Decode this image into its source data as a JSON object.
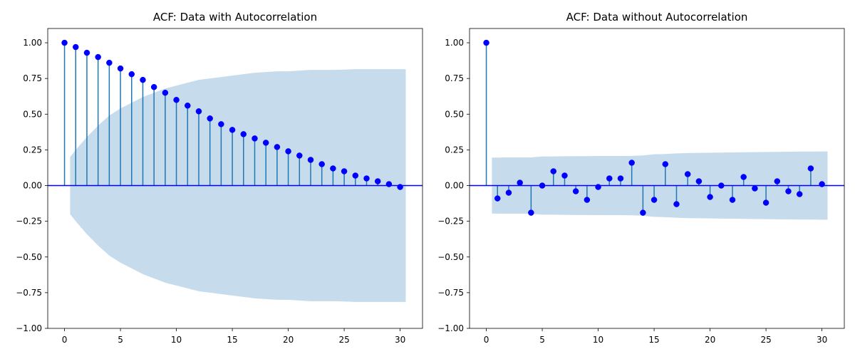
{
  "colors": {
    "stem": "#1f77b4",
    "marker": "#0000ff",
    "zero_line": "#0000ff",
    "confidence_band": "#c6dbec",
    "axes": "#000000"
  },
  "chart_data": [
    {
      "type": "scatter",
      "subtype": "stem",
      "title": "ACF: Data with Autocorrelation",
      "xlabel": "",
      "ylabel": "",
      "xlim": [
        -1.5,
        32
      ],
      "ylim": [
        -1.0,
        1.1
      ],
      "xticks": [
        0,
        5,
        10,
        15,
        20,
        25,
        30
      ],
      "xtick_labels": [
        "0",
        "5",
        "10",
        "15",
        "20",
        "25",
        "30"
      ],
      "yticks": [
        1.0,
        0.75,
        0.5,
        0.25,
        0.0,
        -0.25,
        -0.5,
        -0.75,
        -1.0
      ],
      "ytick_labels": [
        "1.00",
        "0.75",
        "0.50",
        "0.25",
        "0.00",
        "−0.25",
        "−0.50",
        "−0.75",
        "−1.00"
      ],
      "grid": false,
      "x": [
        0,
        1,
        2,
        3,
        4,
        5,
        6,
        7,
        8,
        9,
        10,
        11,
        12,
        13,
        14,
        15,
        16,
        17,
        18,
        19,
        20,
        21,
        22,
        23,
        24,
        25,
        26,
        27,
        28,
        29,
        30
      ],
      "values": [
        1.0,
        0.97,
        0.93,
        0.9,
        0.86,
        0.82,
        0.78,
        0.74,
        0.69,
        0.65,
        0.6,
        0.56,
        0.52,
        0.47,
        0.43,
        0.39,
        0.36,
        0.33,
        0.3,
        0.27,
        0.24,
        0.21,
        0.18,
        0.15,
        0.12,
        0.1,
        0.07,
        0.05,
        0.03,
        0.01,
        -0.01
      ],
      "confidence_band": {
        "x": [
          0.5,
          1,
          2,
          3,
          4,
          5,
          6,
          7,
          8,
          9,
          10,
          11,
          12,
          13,
          14,
          15,
          16,
          17,
          18,
          19,
          20,
          21,
          22,
          23,
          24,
          25,
          26,
          27,
          28,
          29,
          30,
          30.5
        ],
        "upper": [
          0.2,
          0.25,
          0.34,
          0.42,
          0.49,
          0.54,
          0.58,
          0.62,
          0.65,
          0.68,
          0.7,
          0.72,
          0.74,
          0.75,
          0.76,
          0.77,
          0.78,
          0.79,
          0.795,
          0.8,
          0.8,
          0.805,
          0.81,
          0.81,
          0.81,
          0.812,
          0.815,
          0.815,
          0.815,
          0.815,
          0.815,
          0.815
        ]
      }
    },
    {
      "type": "scatter",
      "subtype": "stem",
      "title": "ACF: Data without Autocorrelation",
      "xlabel": "",
      "ylabel": "",
      "xlim": [
        -1.5,
        32
      ],
      "ylim": [
        -1.0,
        1.1
      ],
      "xticks": [
        0,
        5,
        10,
        15,
        20,
        25,
        30
      ],
      "xtick_labels": [
        "0",
        "5",
        "10",
        "15",
        "20",
        "25",
        "30"
      ],
      "yticks": [
        1.0,
        0.75,
        0.5,
        0.25,
        0.0,
        -0.25,
        -0.5,
        -0.75,
        -1.0
      ],
      "ytick_labels": [
        "1.00",
        "0.75",
        "0.50",
        "0.25",
        "0.00",
        "−0.25",
        "−0.50",
        "−0.75",
        "−1.00"
      ],
      "grid": false,
      "x": [
        0,
        1,
        2,
        3,
        4,
        5,
        6,
        7,
        8,
        9,
        10,
        11,
        12,
        13,
        14,
        15,
        16,
        17,
        18,
        19,
        20,
        21,
        22,
        23,
        24,
        25,
        26,
        27,
        28,
        29,
        30
      ],
      "values": [
        1.0,
        -0.09,
        -0.05,
        0.02,
        -0.19,
        0.0,
        0.1,
        0.07,
        -0.04,
        -0.1,
        -0.01,
        0.05,
        0.05,
        0.16,
        -0.19,
        -0.1,
        0.15,
        -0.13,
        0.08,
        0.03,
        -0.08,
        0.0,
        -0.1,
        0.06,
        -0.02,
        -0.12,
        0.03,
        -0.04,
        -0.06,
        0.12,
        0.01
      ],
      "confidence_band": {
        "x": [
          0.5,
          1,
          2,
          3,
          4,
          5,
          6,
          7,
          8,
          9,
          10,
          11,
          12,
          13,
          14,
          15,
          16,
          17,
          18,
          19,
          20,
          21,
          22,
          23,
          24,
          25,
          26,
          27,
          28,
          29,
          30,
          30.5
        ],
        "upper": [
          0.196,
          0.196,
          0.197,
          0.197,
          0.197,
          0.204,
          0.204,
          0.205,
          0.206,
          0.206,
          0.207,
          0.207,
          0.207,
          0.208,
          0.211,
          0.219,
          0.221,
          0.225,
          0.228,
          0.229,
          0.23,
          0.231,
          0.232,
          0.233,
          0.234,
          0.235,
          0.236,
          0.237,
          0.238,
          0.238,
          0.239,
          0.239
        ]
      }
    }
  ]
}
